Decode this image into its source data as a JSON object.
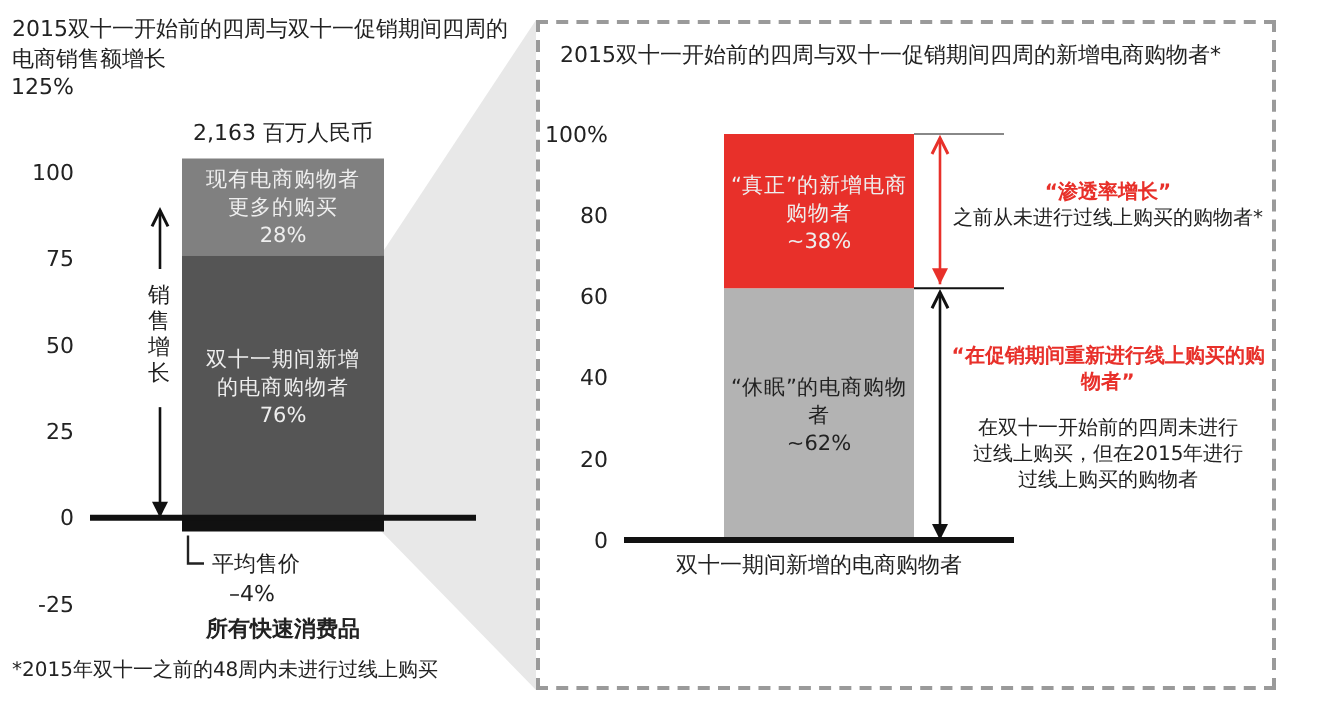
{
  "chart_data": [
    {
      "type": "bar",
      "title": "2015双十一开始前的四周与双十一促销期间四周的电商销售额增长",
      "ylabel": "销售增长",
      "categories": [
        "所有快速消费品"
      ],
      "stacked": true,
      "series": [
        {
          "name": "平均售价",
          "color": "#111111",
          "values": [
            -4
          ],
          "value_labels": [
            "–4%"
          ]
        },
        {
          "name": "双十一期间新增的电商购物者",
          "color": "#555555",
          "values": [
            76
          ],
          "value_labels": [
            "76%"
          ]
        },
        {
          "name": "现有电商购物者更多的购买",
          "color": "#808080",
          "values": [
            28
          ],
          "value_labels": [
            "28%"
          ]
        }
      ],
      "ref_lines": [
        {
          "axis": "y",
          "value": 0,
          "color": "#111111"
        }
      ],
      "ylim": [
        -25,
        125
      ],
      "yticks": [
        -25,
        0,
        25,
        50,
        75,
        100,
        {
          "value": 125,
          "label": "125%"
        }
      ],
      "grid": false,
      "legend": false,
      "annotations": [
        {
          "text": "2,163 百万人民币",
          "x": "所有快速消费品",
          "y": 104
        },
        "*2015年双十一之前的48周内未进行过线上购买"
      ]
    },
    {
      "type": "bar",
      "title": "2015双十一开始前的四周与双十一促销期间四周的新增电商购物者*",
      "categories": [
        "双十一期间新增的电商购物者"
      ],
      "stacked": true,
      "series": [
        {
          "name": "“休眠”的电商购物者",
          "color": "#b3b3b3",
          "values": [
            62
          ],
          "value_labels": [
            "~62%"
          ]
        },
        {
          "name": "“真正”的新增电商购物者",
          "color": "#e8302a",
          "values": [
            38
          ],
          "value_labels": [
            "~38%"
          ]
        }
      ],
      "ylim": [
        0,
        100
      ],
      "yticks": [
        0,
        20,
        40,
        60,
        80,
        {
          "value": 100,
          "label": "100%"
        }
      ],
      "grid": false,
      "legend": false,
      "annotations": [
        "“渗透率增长”",
        "之前从未进行过线上购买的购物者*",
        "“在促销期间重新进行线上购买的购物者”",
        "在双十一开始前的四周未进行过线上购买，但在2015年进行过线上购买的购物者"
      ]
    }
  ]
}
